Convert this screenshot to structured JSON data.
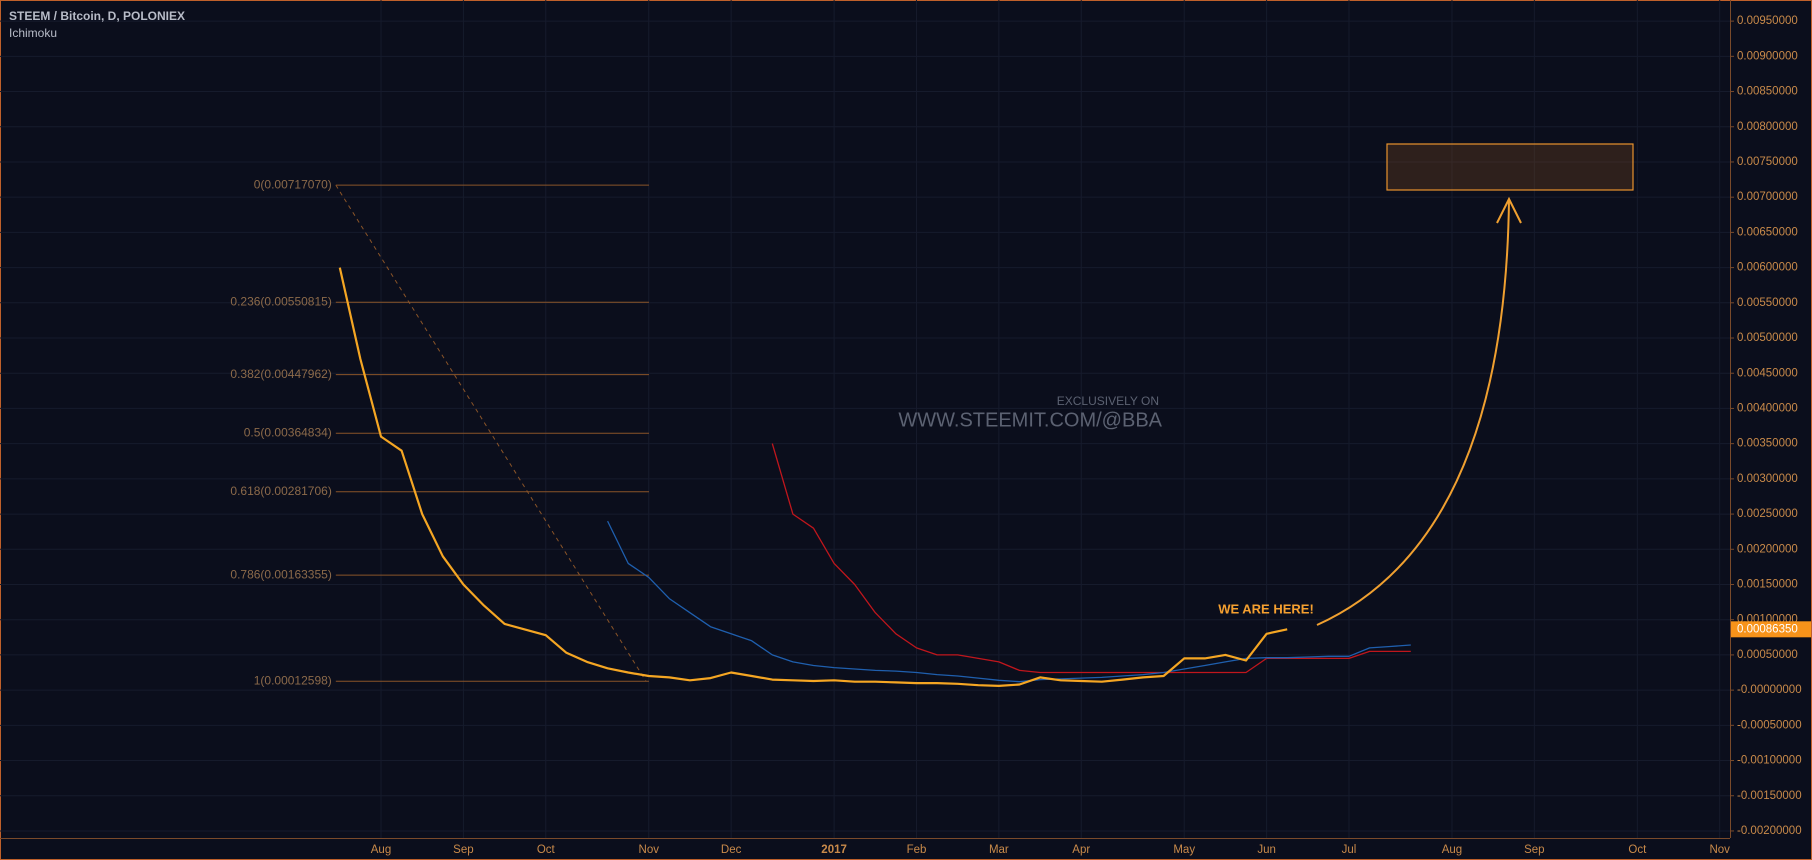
{
  "chart_data": {
    "type": "line",
    "title": "STEEM / Bitcoin, D, POLONIEX",
    "subtitle": "Ichimoku",
    "categories": [
      null,
      null,
      null,
      null,
      null,
      null,
      null,
      null,
      null,
      null,
      null,
      null,
      null,
      null,
      null,
      null,
      null,
      null,
      "Aug",
      null,
      null,
      null,
      "Sep",
      null,
      null,
      null,
      "Oct",
      null,
      null,
      null,
      null,
      "Nov",
      null,
      null,
      null,
      "Dec",
      null,
      null,
      null,
      null,
      "2017",
      null,
      null,
      null,
      "Feb",
      null,
      null,
      null,
      "Mar",
      null,
      null,
      null,
      "Apr",
      null,
      null,
      null,
      null,
      "May",
      null,
      null,
      null,
      "Jun",
      null,
      null,
      null,
      "Jul",
      null,
      null,
      null,
      null,
      "Aug",
      null,
      null,
      null,
      "Sep",
      null,
      null,
      null,
      null,
      "Oct",
      null,
      null,
      null,
      "Nov"
    ],
    "series": [
      {
        "color": "#f5a623",
        "values": [
          null,
          null,
          null,
          null,
          null,
          null,
          null,
          null,
          null,
          null,
          null,
          null,
          null,
          null,
          null,
          null,
          0.006,
          0.0047,
          0.0036,
          0.0034,
          0.0025,
          0.0019,
          0.0015,
          0.0012,
          0.00094,
          0.00086,
          0.00078,
          0.00053,
          0.0004,
          0.00031,
          0.00025,
          0.0002,
          0.00018,
          0.00014,
          0.00017,
          0.00025,
          0.0002,
          0.00015,
          0.00014,
          0.00013,
          0.00014,
          0.00012,
          0.00012,
          0.00011,
          0.0001,
          0.0001,
          9e-05,
          7e-05,
          6e-05,
          8e-05,
          0.00018,
          0.00014,
          0.00013,
          0.00012,
          0.00015,
          0.00018,
          0.0002,
          0.00045,
          0.00045,
          0.0005,
          0.00042,
          0.0008,
          0.0008635,
          null,
          null,
          null,
          null,
          null,
          null,
          null,
          null,
          null,
          null,
          null,
          null,
          null,
          null,
          null,
          null,
          null,
          null,
          null,
          null,
          null
        ]
      },
      {
        "color": "#1f5fae",
        "values": [
          null,
          null,
          null,
          null,
          null,
          null,
          null,
          null,
          null,
          null,
          null,
          null,
          null,
          null,
          null,
          null,
          null,
          null,
          null,
          null,
          null,
          null,
          null,
          null,
          null,
          null,
          null,
          null,
          null,
          0.0024,
          0.0018,
          0.0016,
          0.0013,
          0.0011,
          0.0009,
          0.0008,
          0.0007,
          0.0005,
          0.0004,
          0.00035,
          0.00032,
          0.0003,
          0.00028,
          0.00027,
          0.00025,
          0.00022,
          0.0002,
          0.00017,
          0.00014,
          0.00012,
          0.00015,
          0.00016,
          0.00017,
          0.00018,
          0.0002,
          0.00022,
          0.00025,
          0.0003,
          0.00035,
          0.0004,
          0.00045,
          0.00046,
          0.00046,
          0.00047,
          0.00048,
          0.00048,
          0.0006,
          0.00062,
          0.00064,
          null,
          null,
          null,
          null,
          null,
          null,
          null,
          null,
          null,
          null,
          null,
          null,
          null,
          null,
          null
        ]
      },
      {
        "color": "#c0161c",
        "values": [
          null,
          null,
          null,
          null,
          null,
          null,
          null,
          null,
          null,
          null,
          null,
          null,
          null,
          null,
          null,
          null,
          null,
          null,
          null,
          null,
          null,
          null,
          null,
          null,
          null,
          null,
          null,
          null,
          null,
          null,
          null,
          null,
          null,
          null,
          null,
          null,
          null,
          0.0035,
          0.0025,
          0.0023,
          0.0018,
          0.0015,
          0.0011,
          0.0008,
          0.0006,
          0.0005,
          0.0005,
          0.00045,
          0.0004,
          0.00028,
          0.00025,
          0.00025,
          0.00025,
          0.00025,
          0.00025,
          0.00025,
          0.00025,
          0.00025,
          0.00025,
          0.00025,
          0.00025,
          0.00045,
          0.00045,
          0.00045,
          0.00045,
          0.00045,
          0.00055,
          0.00055,
          0.00055,
          null,
          null,
          null,
          null,
          null,
          null,
          null,
          null,
          null,
          null,
          null,
          null,
          null,
          null,
          null
        ]
      }
    ],
    "ylim": [
      -0.0021,
      0.0098
    ],
    "yticks": [
      {
        "value": 0.0095,
        "label": "0.00950000"
      },
      {
        "value": 0.009,
        "label": "0.00900000"
      },
      {
        "value": 0.0085,
        "label": "0.00850000"
      },
      {
        "value": 0.008,
        "label": "0.00800000"
      },
      {
        "value": 0.0075,
        "label": "0.00750000"
      },
      {
        "value": 0.007,
        "label": "0.00700000"
      },
      {
        "value": 0.0065,
        "label": "0.00650000"
      },
      {
        "value": 0.006,
        "label": "0.00600000"
      },
      {
        "value": 0.0055,
        "label": "0.00550000"
      },
      {
        "value": 0.005,
        "label": "0.00500000"
      },
      {
        "value": 0.0045,
        "label": "0.00450000"
      },
      {
        "value": 0.004,
        "label": "0.00400000"
      },
      {
        "value": 0.0035,
        "label": "0.00350000"
      },
      {
        "value": 0.003,
        "label": "0.00300000"
      },
      {
        "value": 0.0025,
        "label": "0.00250000"
      },
      {
        "value": 0.002,
        "label": "0.00200000"
      },
      {
        "value": 0.0015,
        "label": "0.00150000"
      },
      {
        "value": 0.001,
        "label": "0.00100000"
      },
      {
        "value": 0.0005,
        "label": "0.00050000"
      },
      {
        "value": 0,
        "label": "-0.00000000"
      },
      {
        "value": -0.0005,
        "label": "-0.00050000"
      },
      {
        "value": -0.001,
        "label": "-0.00100000"
      },
      {
        "value": -0.0015,
        "label": "-0.00150000"
      },
      {
        "value": -0.002,
        "label": "-0.00200000"
      }
    ],
    "grid": true,
    "fib_levels": [
      {
        "value": 0.0071707,
        "label": "0(0.00717070)"
      },
      {
        "value": 0.00550815,
        "label": "0.236(0.00550815)"
      },
      {
        "value": 0.00447962,
        "label": "0.382(0.00447962)"
      },
      {
        "value": 0.00364834,
        "label": "0.5(0.00364834)"
      },
      {
        "value": 0.00281706,
        "label": "0.618(0.00281706)"
      },
      {
        "value": 0.00163355,
        "label": "0.786(0.00163355)"
      },
      {
        "value": 0.00012598,
        "label": "1(0.00012598)"
      }
    ],
    "last_price": {
      "value": 0.0008635,
      "label": "0.00086350"
    },
    "watermark": {
      "small": "EXCLUSIVELY ON",
      "large": "WWW.STEEMIT.COM/@BBA"
    },
    "annotation": "WE ARE HERE!"
  }
}
